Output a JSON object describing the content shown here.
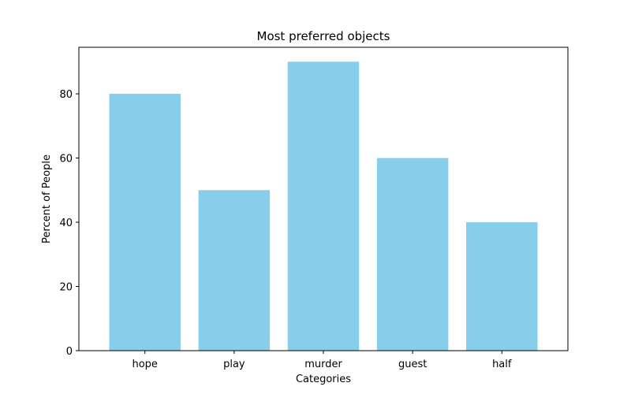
{
  "chart_data": {
    "type": "bar",
    "title": "Most preferred objects",
    "xlabel": "Categories",
    "ylabel": "Percent of People",
    "categories": [
      "hope",
      "play",
      "murder",
      "guest",
      "half"
    ],
    "values": [
      80,
      50,
      90,
      60,
      40
    ],
    "yticks": [
      0,
      20,
      40,
      60,
      80
    ],
    "ylim": [
      0,
      94.5
    ],
    "grid": false,
    "legend": "none",
    "bar_color": "#87ceeb"
  }
}
